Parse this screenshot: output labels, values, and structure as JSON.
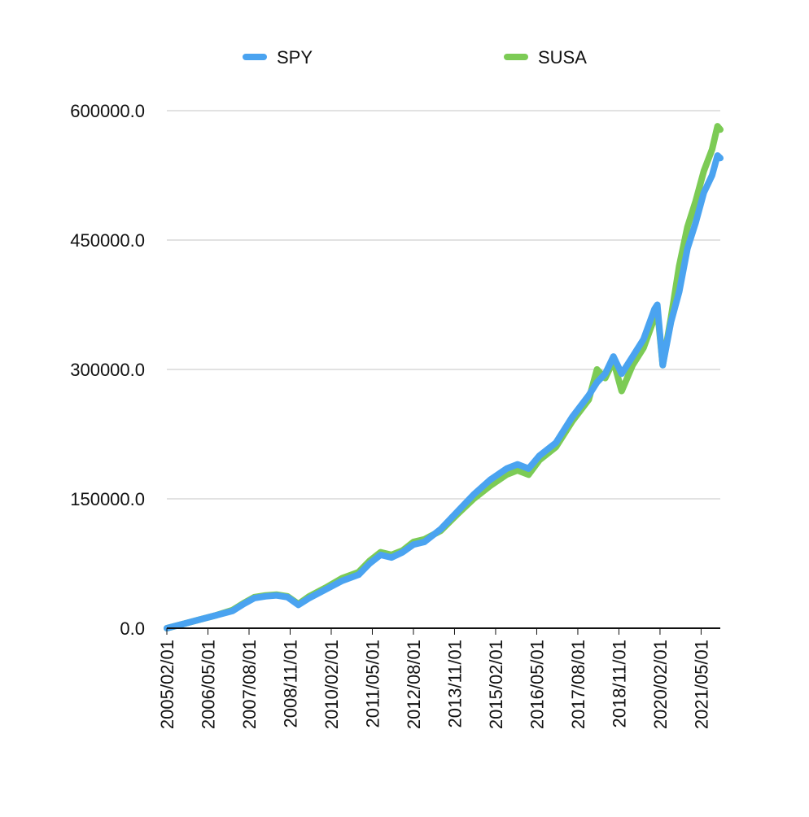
{
  "chart_data": {
    "type": "line",
    "title": "",
    "xlabel": "",
    "ylabel": "",
    "ylim": [
      0,
      600000
    ],
    "y_ticks": [
      "0.0",
      "150000.0",
      "300000.0",
      "450000.0",
      "600000.0"
    ],
    "x_tick_labels": [
      "2005/02/01",
      "2006/05/01",
      "2007/08/01",
      "2008/11/01",
      "2010/02/01",
      "2011/05/01",
      "2012/08/01",
      "2013/11/01",
      "2015/02/01",
      "2016/05/01",
      "2017/08/01",
      "2018/11/01",
      "2020/02/01",
      "2021/05/01"
    ],
    "x_range": [
      "2005/02/01",
      "2021/12/01"
    ],
    "grid": "horizontal",
    "legend_position": "top",
    "series": [
      {
        "name": "SPY",
        "color": "#4aa3f0",
        "points": [
          [
            "2005/02/01",
            0
          ],
          [
            "2005/08/01",
            5000
          ],
          [
            "2006/02/01",
            10000
          ],
          [
            "2006/08/01",
            15000
          ],
          [
            "2007/02/01",
            20000
          ],
          [
            "2007/06/01",
            28000
          ],
          [
            "2007/10/01",
            35000
          ],
          [
            "2008/02/01",
            37000
          ],
          [
            "2008/06/01",
            38000
          ],
          [
            "2008/10/01",
            36000
          ],
          [
            "2009/02/01",
            27000
          ],
          [
            "2009/06/01",
            35000
          ],
          [
            "2009/12/01",
            45000
          ],
          [
            "2010/06/01",
            55000
          ],
          [
            "2010/12/01",
            62000
          ],
          [
            "2011/04/01",
            75000
          ],
          [
            "2011/08/01",
            85000
          ],
          [
            "2011/12/01",
            82000
          ],
          [
            "2012/04/01",
            88000
          ],
          [
            "2012/08/01",
            97000
          ],
          [
            "2012/12/01",
            100000
          ],
          [
            "2013/06/01",
            115000
          ],
          [
            "2013/12/01",
            135000
          ],
          [
            "2014/06/01",
            155000
          ],
          [
            "2014/12/01",
            172000
          ],
          [
            "2015/06/01",
            185000
          ],
          [
            "2015/10/01",
            190000
          ],
          [
            "2016/02/01",
            185000
          ],
          [
            "2016/06/01",
            200000
          ],
          [
            "2016/12/01",
            215000
          ],
          [
            "2017/06/01",
            245000
          ],
          [
            "2017/12/01",
            270000
          ],
          [
            "2018/03/01",
            285000
          ],
          [
            "2018/06/01",
            295000
          ],
          [
            "2018/09/01",
            315000
          ],
          [
            "2018/12/01",
            295000
          ],
          [
            "2019/04/01",
            315000
          ],
          [
            "2019/08/01",
            335000
          ],
          [
            "2019/12/01",
            370000
          ],
          [
            "2020/01/01",
            375000
          ],
          [
            "2020/03/01",
            305000
          ],
          [
            "2020/06/01",
            355000
          ],
          [
            "2020/09/01",
            390000
          ],
          [
            "2020/12/01",
            440000
          ],
          [
            "2021/03/01",
            470000
          ],
          [
            "2021/06/01",
            505000
          ],
          [
            "2021/09/01",
            525000
          ],
          [
            "2021/11/01",
            548000
          ],
          [
            "2021/12/01",
            545000
          ]
        ]
      },
      {
        "name": "SUSA",
        "color": "#7ccb55",
        "points": [
          [
            "2005/02/01",
            0
          ],
          [
            "2005/08/01",
            5000
          ],
          [
            "2006/02/01",
            10000
          ],
          [
            "2006/08/01",
            15000
          ],
          [
            "2007/02/01",
            21000
          ],
          [
            "2007/06/01",
            29000
          ],
          [
            "2007/10/01",
            36000
          ],
          [
            "2008/02/01",
            38000
          ],
          [
            "2008/06/01",
            39000
          ],
          [
            "2008/10/01",
            37000
          ],
          [
            "2009/02/01",
            28000
          ],
          [
            "2009/06/01",
            37000
          ],
          [
            "2009/12/01",
            47000
          ],
          [
            "2010/06/01",
            58000
          ],
          [
            "2010/12/01",
            65000
          ],
          [
            "2011/04/01",
            78000
          ],
          [
            "2011/08/01",
            88000
          ],
          [
            "2011/12/01",
            85000
          ],
          [
            "2012/04/01",
            90000
          ],
          [
            "2012/08/01",
            100000
          ],
          [
            "2012/12/01",
            103000
          ],
          [
            "2013/06/01",
            113000
          ],
          [
            "2013/12/01",
            132000
          ],
          [
            "2014/06/01",
            150000
          ],
          [
            "2014/12/01",
            165000
          ],
          [
            "2015/06/01",
            178000
          ],
          [
            "2015/10/01",
            183000
          ],
          [
            "2016/02/01",
            178000
          ],
          [
            "2016/06/01",
            195000
          ],
          [
            "2016/12/01",
            210000
          ],
          [
            "2017/06/01",
            240000
          ],
          [
            "2017/12/01",
            265000
          ],
          [
            "2018/03/01",
            300000
          ],
          [
            "2018/06/01",
            290000
          ],
          [
            "2018/09/01",
            310000
          ],
          [
            "2018/12/01",
            275000
          ],
          [
            "2019/04/01",
            305000
          ],
          [
            "2019/08/01",
            325000
          ],
          [
            "2019/12/01",
            360000
          ],
          [
            "2020/01/01",
            370000
          ],
          [
            "2020/03/01",
            305000
          ],
          [
            "2020/06/01",
            360000
          ],
          [
            "2020/09/01",
            420000
          ],
          [
            "2020/12/01",
            465000
          ],
          [
            "2021/03/01",
            495000
          ],
          [
            "2021/06/01",
            530000
          ],
          [
            "2021/09/01",
            555000
          ],
          [
            "2021/11/01",
            582000
          ],
          [
            "2021/12/01",
            578000
          ]
        ]
      }
    ]
  }
}
